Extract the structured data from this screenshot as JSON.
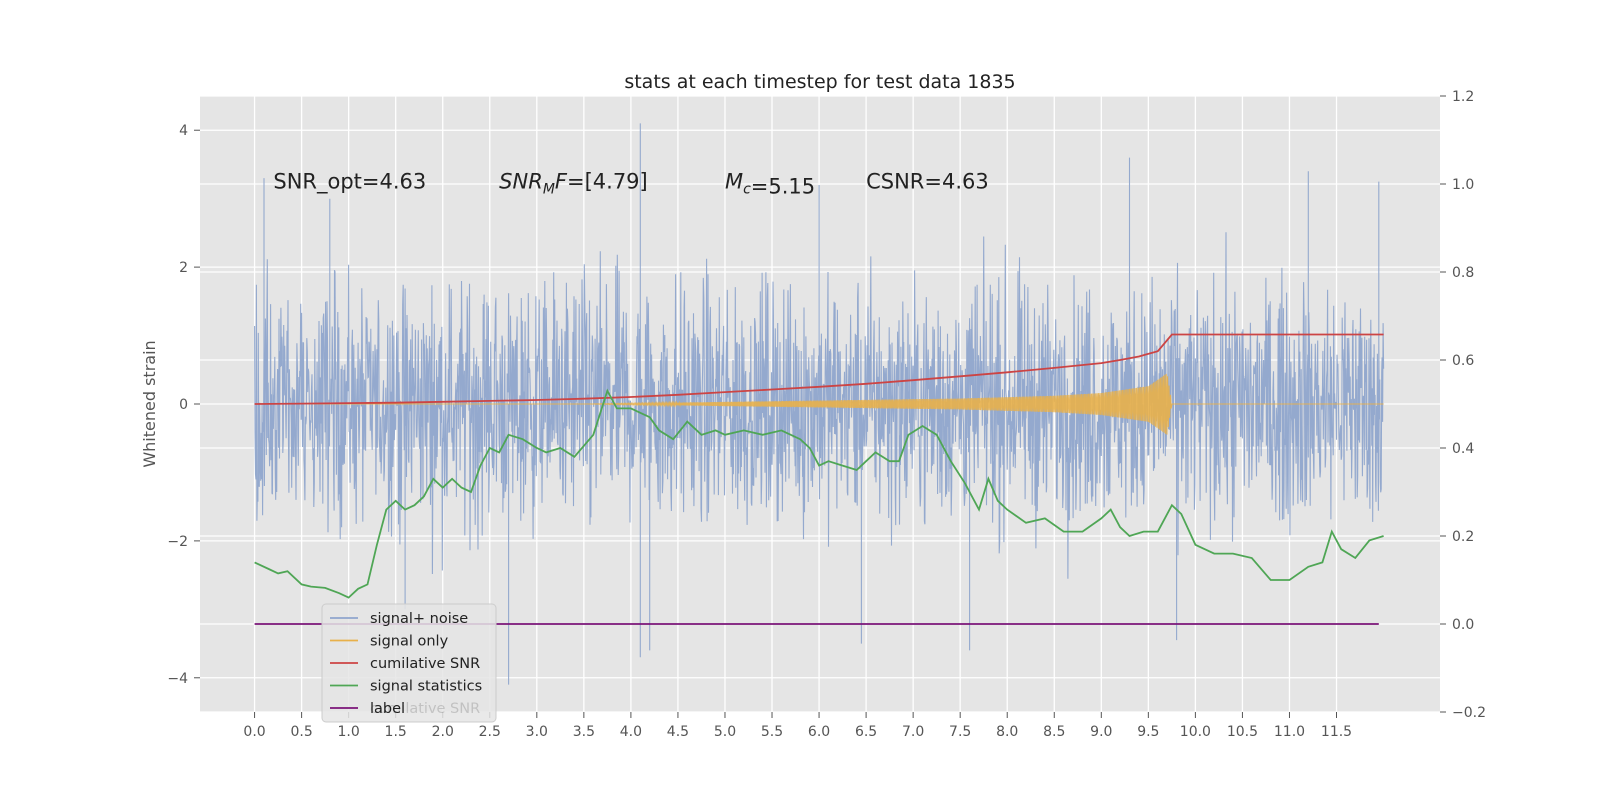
{
  "chart_data": {
    "type": "line",
    "title": "stats at each timestep for test data 1835",
    "ylabel": "Whitened strain",
    "y2label": "",
    "xlim": [
      -0.58,
      12.6
    ],
    "ylim": [
      -4.5,
      4.5
    ],
    "y2lim": [
      -0.2,
      1.2
    ],
    "x_ticks": [
      0.0,
      0.5,
      1.0,
      1.5,
      2.0,
      2.5,
      3.0,
      3.5,
      4.0,
      4.5,
      5.0,
      5.5,
      6.0,
      6.5,
      7.0,
      7.5,
      8.0,
      8.5,
      9.0,
      9.5,
      10.0,
      10.5,
      11.0,
      11.5
    ],
    "x_tick_labels": [
      "0.0",
      "0.5",
      "1.0",
      "1.5",
      "2.0",
      "2.5",
      "3.0",
      "3.5",
      "4.0",
      "4.5",
      "5.0",
      "5.5",
      "6.0",
      "6.5",
      "7.0",
      "7.5",
      "8.0",
      "8.5",
      "9.0",
      "9.5",
      "10.0",
      "10.5",
      "11.0",
      "11.5"
    ],
    "y_ticks": [
      -4,
      -2,
      0,
      2,
      4
    ],
    "y_tick_labels": [
      "−4",
      "−2",
      "0",
      "2",
      "4"
    ],
    "y2_ticks": [
      -0.2,
      0.0,
      0.2,
      0.4,
      0.6,
      0.8,
      1.0,
      1.2
    ],
    "y2_tick_labels": [
      "−0.2",
      "0.0",
      "0.2",
      "0.4",
      "0.6",
      "0.8",
      "1.0",
      "1.2"
    ],
    "grid": true,
    "legend_position": "lower-left",
    "annotations": [
      {
        "x": 0.2,
        "y": 3.25,
        "text": "SNR_opt=4.63",
        "italic_part": ""
      },
      {
        "x": 2.6,
        "y": 3.25,
        "text": "=[4.79]",
        "italic_part": "SNR_M F"
      },
      {
        "x": 5.0,
        "y": 3.25,
        "text": "=5.15",
        "italic_part": "M_c"
      },
      {
        "x": 6.5,
        "y": 3.25,
        "text": "CSNR=4.63",
        "italic_part": ""
      }
    ],
    "series": [
      {
        "name": "signal+ noise",
        "axis": "left",
        "color": "#8fa5cc",
        "style": "noise",
        "x_range": [
          0.0,
          12.0
        ],
        "envelope": [
          [
            0.0,
            2.2
          ],
          [
            2.0,
            2.2
          ],
          [
            4.0,
            2.3
          ],
          [
            6.0,
            2.2
          ],
          [
            8.0,
            2.2
          ],
          [
            10.0,
            2.2
          ],
          [
            12.0,
            2.2
          ]
        ],
        "spikes": [
          [
            0.1,
            3.3
          ],
          [
            0.8,
            3.0
          ],
          [
            1.6,
            -3.0
          ],
          [
            2.7,
            -4.1
          ],
          [
            4.1,
            4.1
          ],
          [
            4.1,
            -3.7
          ],
          [
            4.2,
            -3.6
          ],
          [
            6.0,
            3.2
          ],
          [
            6.45,
            -3.5
          ],
          [
            7.6,
            -3.6
          ],
          [
            9.8,
            -3.45
          ],
          [
            9.3,
            3.6
          ],
          [
            11.2,
            3.4
          ],
          [
            11.95,
            3.25
          ]
        ]
      },
      {
        "name": "signal only",
        "axis": "left",
        "color": "#e8b04a",
        "style": "chirp",
        "x_range": [
          0.0,
          12.0
        ],
        "envelope": [
          [
            0.0,
            0.0
          ],
          [
            3.5,
            0.0
          ],
          [
            4.5,
            0.02
          ],
          [
            6.0,
            0.05
          ],
          [
            7.5,
            0.08
          ],
          [
            8.5,
            0.12
          ],
          [
            9.0,
            0.16
          ],
          [
            9.5,
            0.26
          ],
          [
            9.7,
            0.45
          ],
          [
            9.75,
            0.0
          ],
          [
            12.0,
            0.0
          ]
        ]
      },
      {
        "name": "cumilative SNR",
        "axis": "right",
        "color": "#cc4444",
        "style": "line",
        "x": [
          0.0,
          0.5,
          1.0,
          1.5,
          2.0,
          2.5,
          3.0,
          3.5,
          4.0,
          4.5,
          5.0,
          5.5,
          6.0,
          6.5,
          7.0,
          7.5,
          8.0,
          8.5,
          9.0,
          9.2,
          9.4,
          9.6,
          9.75,
          10.0,
          10.5,
          11.0,
          11.5,
          12.0
        ],
        "y": [
          0.5,
          0.501,
          0.502,
          0.503,
          0.505,
          0.507,
          0.509,
          0.512,
          0.516,
          0.521,
          0.527,
          0.533,
          0.539,
          0.546,
          0.554,
          0.563,
          0.572,
          0.582,
          0.593,
          0.6,
          0.608,
          0.62,
          0.658,
          0.658,
          0.658,
          0.658,
          0.658,
          0.658
        ]
      },
      {
        "name": "signal statistics",
        "axis": "right",
        "color": "#4fa655",
        "style": "line",
        "x": [
          0.0,
          0.15,
          0.25,
          0.35,
          0.5,
          0.6,
          0.75,
          0.9,
          1.0,
          1.1,
          1.2,
          1.3,
          1.4,
          1.5,
          1.6,
          1.7,
          1.8,
          1.9,
          2.0,
          2.1,
          2.2,
          2.3,
          2.4,
          2.5,
          2.6,
          2.7,
          2.85,
          3.0,
          3.1,
          3.25,
          3.4,
          3.6,
          3.75,
          3.85,
          4.0,
          4.1,
          4.2,
          4.3,
          4.45,
          4.6,
          4.75,
          4.9,
          5.0,
          5.2,
          5.4,
          5.6,
          5.8,
          5.9,
          6.0,
          6.1,
          6.25,
          6.4,
          6.5,
          6.6,
          6.75,
          6.85,
          6.95,
          7.1,
          7.25,
          7.4,
          7.55,
          7.7,
          7.8,
          7.9,
          8.0,
          8.2,
          8.4,
          8.6,
          8.8,
          9.0,
          9.1,
          9.2,
          9.3,
          9.45,
          9.6,
          9.75,
          9.85,
          10.0,
          10.2,
          10.4,
          10.6,
          10.8,
          11.0,
          11.2,
          11.35,
          11.45,
          11.55,
          11.7,
          11.85,
          12.0
        ],
        "y": [
          0.14,
          0.125,
          0.115,
          0.12,
          0.09,
          0.085,
          0.082,
          0.07,
          0.06,
          0.08,
          0.09,
          0.18,
          0.26,
          0.28,
          0.26,
          0.27,
          0.29,
          0.33,
          0.31,
          0.33,
          0.31,
          0.3,
          0.36,
          0.4,
          0.39,
          0.43,
          0.42,
          0.4,
          0.39,
          0.4,
          0.38,
          0.43,
          0.53,
          0.49,
          0.49,
          0.48,
          0.47,
          0.44,
          0.42,
          0.46,
          0.43,
          0.44,
          0.43,
          0.44,
          0.43,
          0.44,
          0.42,
          0.4,
          0.36,
          0.37,
          0.36,
          0.35,
          0.37,
          0.39,
          0.37,
          0.37,
          0.43,
          0.45,
          0.43,
          0.37,
          0.32,
          0.26,
          0.33,
          0.28,
          0.26,
          0.23,
          0.24,
          0.21,
          0.21,
          0.24,
          0.26,
          0.22,
          0.2,
          0.21,
          0.21,
          0.27,
          0.25,
          0.18,
          0.16,
          0.16,
          0.15,
          0.1,
          0.1,
          0.13,
          0.14,
          0.21,
          0.17,
          0.15,
          0.19,
          0.2
        ]
      },
      {
        "name": "label",
        "axis": "right",
        "color": "#7a1478",
        "style": "line",
        "x": [
          0.0,
          11.95
        ],
        "y": [
          0.0,
          0.0
        ]
      }
    ],
    "legend_ghost_text": "cumilative SNR"
  }
}
